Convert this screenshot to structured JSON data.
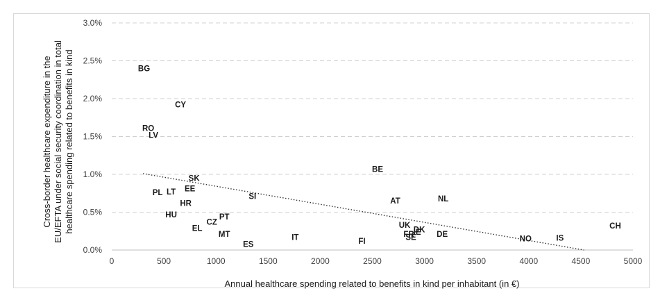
{
  "chart_data": {
    "type": "scatter",
    "xlabel": "Annual healthcare spending related to benefits in kind per inhabitant (in €)",
    "ylabel_lines": [
      "Cross-border healthcare expenditure in the",
      "EU/EFTA under social security coordination in total",
      "healthcare spending related to benefits in kind"
    ],
    "xlim": [
      0,
      5000
    ],
    "ylim": [
      0,
      0.03
    ],
    "x_ticks": [
      0,
      500,
      1000,
      1500,
      2000,
      2500,
      3000,
      3500,
      4000,
      4500,
      5000
    ],
    "x_tick_labels": [
      "0",
      "500",
      "1000",
      "1500",
      "2000",
      "2500",
      "3000",
      "3500",
      "4000",
      "4500",
      "5000"
    ],
    "y_ticks": [
      0,
      0.005,
      0.01,
      0.015,
      0.02,
      0.025,
      0.03
    ],
    "y_tick_labels": [
      "0.0%",
      "0.5%",
      "1.0%",
      "1.5%",
      "2.0%",
      "2.5%",
      "3.0%"
    ],
    "grid": "horizontal-dashed",
    "points": [
      {
        "label": "BG",
        "x": 310,
        "y": 0.024
      },
      {
        "label": "CY",
        "x": 660,
        "y": 0.0192
      },
      {
        "label": "RO",
        "x": 350,
        "y": 0.0161
      },
      {
        "label": "LV",
        "x": 400,
        "y": 0.0152
      },
      {
        "label": "SK",
        "x": 790,
        "y": 0.0095
      },
      {
        "label": "PL",
        "x": 440,
        "y": 0.0076
      },
      {
        "label": "LT",
        "x": 570,
        "y": 0.0077
      },
      {
        "label": "EE",
        "x": 750,
        "y": 0.0081
      },
      {
        "label": "HR",
        "x": 710,
        "y": 0.0062
      },
      {
        "label": "SI",
        "x": 1350,
        "y": 0.0071
      },
      {
        "label": "HU",
        "x": 570,
        "y": 0.0047
      },
      {
        "label": "PT",
        "x": 1080,
        "y": 0.0044
      },
      {
        "label": "CZ",
        "x": 960,
        "y": 0.0037
      },
      {
        "label": "EL",
        "x": 820,
        "y": 0.0029
      },
      {
        "label": "MT",
        "x": 1080,
        "y": 0.0021
      },
      {
        "label": "ES",
        "x": 1310,
        "y": 0.0008
      },
      {
        "label": "IT",
        "x": 1760,
        "y": 0.0017
      },
      {
        "label": "FI",
        "x": 2400,
        "y": 0.0012
      },
      {
        "label": "BE",
        "x": 2550,
        "y": 0.0107
      },
      {
        "label": "AT",
        "x": 2720,
        "y": 0.0065
      },
      {
        "label": "NL",
        "x": 3180,
        "y": 0.0068
      },
      {
        "label": "UK",
        "x": 2810,
        "y": 0.0033
      },
      {
        "label": "DK",
        "x": 2950,
        "y": 0.0027
      },
      {
        "label": "IE",
        "x": 2930,
        "y": 0.0024
      },
      {
        "label": "FR",
        "x": 2850,
        "y": 0.0021
      },
      {
        "label": "SE",
        "x": 2870,
        "y": 0.0017
      },
      {
        "label": "DE",
        "x": 3170,
        "y": 0.0021
      },
      {
        "label": "NO",
        "x": 3970,
        "y": 0.0015
      },
      {
        "label": "IS",
        "x": 4300,
        "y": 0.0016
      },
      {
        "label": "CH",
        "x": 4830,
        "y": 0.0032
      }
    ],
    "trendline": {
      "style": "dotted",
      "from": {
        "x": 300,
        "y": 0.0101
      },
      "to": {
        "x": 4530,
        "y": 0.0
      }
    }
  }
}
